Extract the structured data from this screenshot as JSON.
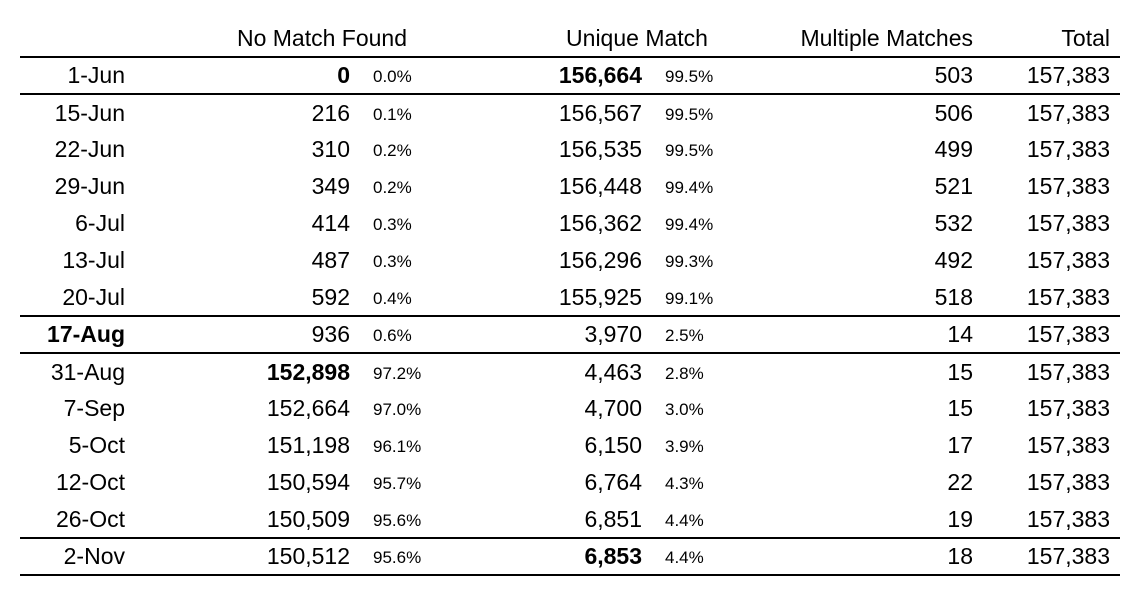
{
  "chart_data": {
    "type": "table",
    "column_headers": {
      "date": "",
      "no_match": "No Match Found",
      "unique": "Unique Match",
      "multiple": "Multiple Matches",
      "total": "Total"
    },
    "rows": [
      {
        "date": "1-Jun",
        "no_match": "0",
        "no_match_pct": "0.0%",
        "unique": "156,664",
        "unique_pct": "99.5%",
        "multiple": "503",
        "total": "157,383",
        "bold_cells": [
          "no_match",
          "unique"
        ],
        "separator_below": true
      },
      {
        "date": "15-Jun",
        "no_match": "216",
        "no_match_pct": "0.1%",
        "unique": "156,567",
        "unique_pct": "99.5%",
        "multiple": "506",
        "total": "157,383",
        "bold_cells": [],
        "separator_below": false
      },
      {
        "date": "22-Jun",
        "no_match": "310",
        "no_match_pct": "0.2%",
        "unique": "156,535",
        "unique_pct": "99.5%",
        "multiple": "499",
        "total": "157,383",
        "bold_cells": [],
        "separator_below": false
      },
      {
        "date": "29-Jun",
        "no_match": "349",
        "no_match_pct": "0.2%",
        "unique": "156,448",
        "unique_pct": "99.4%",
        "multiple": "521",
        "total": "157,383",
        "bold_cells": [],
        "separator_below": false
      },
      {
        "date": "6-Jul",
        "no_match": "414",
        "no_match_pct": "0.3%",
        "unique": "156,362",
        "unique_pct": "99.4%",
        "multiple": "532",
        "total": "157,383",
        "bold_cells": [],
        "separator_below": false
      },
      {
        "date": "13-Jul",
        "no_match": "487",
        "no_match_pct": "0.3%",
        "unique": "156,296",
        "unique_pct": "99.3%",
        "multiple": "492",
        "total": "157,383",
        "bold_cells": [],
        "separator_below": false
      },
      {
        "date": "20-Jul",
        "no_match": "592",
        "no_match_pct": "0.4%",
        "unique": "155,925",
        "unique_pct": "99.1%",
        "multiple": "518",
        "total": "157,383",
        "bold_cells": [],
        "separator_below": true
      },
      {
        "date": "17-Aug",
        "no_match": "936",
        "no_match_pct": "0.6%",
        "unique": "3,970",
        "unique_pct": "2.5%",
        "multiple": "14",
        "total": "157,383",
        "bold_cells": [
          "date"
        ],
        "separator_below": true
      },
      {
        "date": "31-Aug",
        "no_match": "152,898",
        "no_match_pct": "97.2%",
        "unique": "4,463",
        "unique_pct": "2.8%",
        "multiple": "15",
        "total": "157,383",
        "bold_cells": [
          "no_match"
        ],
        "separator_below": false
      },
      {
        "date": "7-Sep",
        "no_match": "152,664",
        "no_match_pct": "97.0%",
        "unique": "4,700",
        "unique_pct": "3.0%",
        "multiple": "15",
        "total": "157,383",
        "bold_cells": [],
        "separator_below": false
      },
      {
        "date": "5-Oct",
        "no_match": "151,198",
        "no_match_pct": "96.1%",
        "unique": "6,150",
        "unique_pct": "3.9%",
        "multiple": "17",
        "total": "157,383",
        "bold_cells": [],
        "separator_below": false
      },
      {
        "date": "12-Oct",
        "no_match": "150,594",
        "no_match_pct": "95.7%",
        "unique": "6,764",
        "unique_pct": "4.3%",
        "multiple": "22",
        "total": "157,383",
        "bold_cells": [],
        "separator_below": false
      },
      {
        "date": "26-Oct",
        "no_match": "150,509",
        "no_match_pct": "95.6%",
        "unique": "6,851",
        "unique_pct": "4.4%",
        "multiple": "19",
        "total": "157,383",
        "bold_cells": [],
        "separator_below": true
      },
      {
        "date": "2-Nov",
        "no_match": "150,512",
        "no_match_pct": "95.6%",
        "unique": "6,853",
        "unique_pct": "4.4%",
        "multiple": "18",
        "total": "157,383",
        "bold_cells": [
          "unique"
        ],
        "separator_below": true
      }
    ]
  }
}
